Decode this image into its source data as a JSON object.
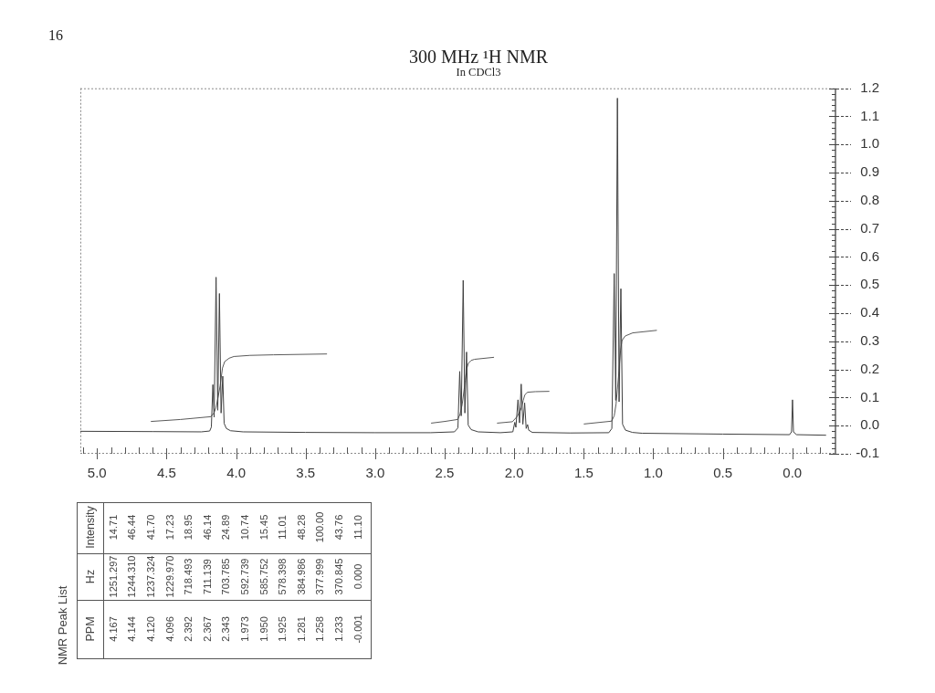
{
  "chart_data": {
    "type": "line",
    "title": "300 MHz ¹H NMR",
    "subtitle": "In CDCl3",
    "series": [
      {
        "color": "#404040",
        "x": [
          5.12,
          4.6,
          4.25,
          4.19,
          4.178,
          4.167,
          4.158,
          4.144,
          4.132,
          4.12,
          4.108,
          4.096,
          4.086,
          4.07,
          4.04,
          3.95,
          3.5,
          3.0,
          2.6,
          2.43,
          2.405,
          2.392,
          2.381,
          2.367,
          2.355,
          2.343,
          2.331,
          2.31,
          2.26,
          2.1,
          2.01,
          1.996,
          1.988,
          1.973,
          1.962,
          1.95,
          1.938,
          1.925,
          1.914,
          1.904,
          1.896,
          1.87,
          1.6,
          1.32,
          1.298,
          1.281,
          1.27,
          1.258,
          1.246,
          1.233,
          1.221,
          1.2,
          1.15,
          1.08,
          0.5,
          0.02,
          0.006,
          -0.001,
          -0.008,
          -0.03,
          -0.24
        ],
        "values": [
          -0.02,
          -0.021,
          -0.022,
          -0.019,
          -0.005,
          0.146,
          0.03,
          0.528,
          0.055,
          0.47,
          0.045,
          0.176,
          0.008,
          -0.01,
          -0.018,
          -0.022,
          -0.024,
          -0.025,
          -0.025,
          -0.022,
          -0.008,
          0.193,
          0.035,
          0.517,
          0.045,
          0.262,
          0.002,
          -0.014,
          -0.022,
          -0.025,
          -0.022,
          0.012,
          -0.006,
          0.092,
          0.01,
          0.148,
          0.005,
          0.081,
          -0.01,
          0.004,
          -0.016,
          -0.024,
          -0.026,
          -0.025,
          -0.01,
          0.541,
          0.09,
          1.165,
          0.085,
          0.487,
          0.005,
          -0.016,
          -0.024,
          -0.027,
          -0.03,
          -0.032,
          -0.022,
          0.092,
          -0.022,
          -0.032,
          -0.034
        ]
      },
      {
        "color": "#5a5a5a",
        "x": [
          4.612,
          4.4,
          4.181,
          4.16,
          4.144,
          4.13,
          4.115,
          4.098,
          4.082,
          4.05,
          4.016,
          3.9,
          3.732,
          3.349
        ],
        "values": [
          0.015,
          0.022,
          0.032,
          0.045,
          0.065,
          0.1,
          0.141,
          0.205,
          0.228,
          0.24,
          0.246,
          0.25,
          0.252,
          0.255
        ]
      },
      {
        "color": "#5a5a5a",
        "x": [
          2.597,
          2.5,
          2.407,
          2.39,
          2.374,
          2.36,
          2.352,
          2.34,
          2.33,
          2.31,
          2.286,
          2.148
        ],
        "values": [
          0.009,
          0.015,
          0.022,
          0.04,
          0.076,
          0.13,
          0.162,
          0.205,
          0.222,
          0.232,
          0.236,
          0.243
        ]
      },
      {
        "color": "#5a5a5a",
        "x": [
          2.122,
          2.013,
          1.98,
          1.96,
          1.947,
          1.935,
          1.925,
          1.912,
          1.903,
          1.848,
          1.75
        ],
        "values": [
          0.009,
          0.014,
          0.032,
          0.05,
          0.065,
          0.09,
          0.108,
          0.116,
          0.119,
          0.121,
          0.122
        ]
      },
      {
        "color": "#5a5a5a",
        "x": [
          1.498,
          1.3,
          1.281,
          1.268,
          1.258,
          1.247,
          1.235,
          1.225,
          1.202,
          1.148,
          0.977
        ],
        "values": [
          0.006,
          0.016,
          0.035,
          0.076,
          0.13,
          0.195,
          0.27,
          0.303,
          0.319,
          0.33,
          0.339
        ]
      }
    ],
    "xlim": [
      5.12,
      -0.31
    ],
    "ylim": [
      -0.1,
      1.2
    ],
    "xticks": [
      {
        "value": 5.1,
        "label": null
      },
      {
        "value": 5,
        "label": "5.0"
      },
      {
        "value": 4.9,
        "label": null
      },
      {
        "value": 4.8,
        "label": null
      },
      {
        "value": 4.7,
        "label": null
      },
      {
        "value": 4.6,
        "label": null
      },
      4.5,
      {
        "value": 4.4,
        "label": null
      },
      {
        "value": 4.3,
        "label": null
      },
      {
        "value": 4.2,
        "label": null
      },
      {
        "value": 4.1,
        "label": null
      },
      {
        "value": 4,
        "label": "4.0"
      },
      {
        "value": 3.9,
        "label": null
      },
      {
        "value": 3.8,
        "label": null
      },
      {
        "value": 3.7,
        "label": null
      },
      {
        "value": 3.6,
        "label": null
      },
      3.5,
      {
        "value": 3.4,
        "label": null
      },
      {
        "value": 3.3,
        "label": null
      },
      {
        "value": 3.2,
        "label": null
      },
      {
        "value": 3.1,
        "label": null
      },
      {
        "value": 3,
        "label": "3.0"
      },
      {
        "value": 2.9,
        "label": null
      },
      {
        "value": 2.8,
        "label": null
      },
      {
        "value": 2.7,
        "label": null
      },
      {
        "value": 2.6,
        "label": null
      },
      2.5,
      {
        "value": 2.4,
        "label": null
      },
      {
        "value": 2.3,
        "label": null
      },
      {
        "value": 2.2,
        "label": null
      },
      {
        "value": 2.1,
        "label": null
      },
      {
        "value": 2,
        "label": "2.0"
      },
      {
        "value": 1.9,
        "label": null
      },
      {
        "value": 1.8,
        "label": null
      },
      {
        "value": 1.7,
        "label": null
      },
      {
        "value": 1.6,
        "label": null
      },
      1.5,
      {
        "value": 1.4,
        "label": null
      },
      {
        "value": 1.3,
        "label": null
      },
      {
        "value": 1.2,
        "label": null
      },
      {
        "value": 1.1,
        "label": null
      },
      {
        "value": 1,
        "label": "1.0"
      },
      {
        "value": 0.9,
        "label": null
      },
      {
        "value": 0.8,
        "label": null
      },
      {
        "value": 0.7,
        "label": null
      },
      {
        "value": 0.6,
        "label": null
      },
      0.5,
      {
        "value": 0.4,
        "label": null
      },
      {
        "value": 0.3,
        "label": null
      },
      {
        "value": 0.2,
        "label": null
      },
      {
        "value": 0.1,
        "label": null
      },
      {
        "value": 0,
        "label": "0.0"
      },
      {
        "value": -0.1,
        "label": null
      },
      {
        "value": -0.2,
        "label": null
      }
    ],
    "yticks": [
      -0.1,
      {
        "value": -0.08,
        "label": null
      },
      {
        "value": -0.06,
        "label": null
      },
      {
        "value": -0.04,
        "label": null
      },
      {
        "value": -0.02,
        "label": null
      },
      {
        "value": 0,
        "label": "0.0"
      },
      {
        "value": 0.02,
        "label": null
      },
      {
        "value": 0.04,
        "label": null
      },
      {
        "value": 0.06,
        "label": null
      },
      {
        "value": 0.08,
        "label": null
      },
      0.1,
      {
        "value": 0.12,
        "label": null
      },
      {
        "value": 0.14,
        "label": null
      },
      {
        "value": 0.16,
        "label": null
      },
      {
        "value": 0.18,
        "label": null
      },
      0.2,
      {
        "value": 0.22,
        "label": null
      },
      {
        "value": 0.24,
        "label": null
      },
      {
        "value": 0.26,
        "label": null
      },
      {
        "value": 0.28,
        "label": null
      },
      0.3,
      {
        "value": 0.32,
        "label": null
      },
      {
        "value": 0.34,
        "label": null
      },
      {
        "value": 0.36,
        "label": null
      },
      {
        "value": 0.38,
        "label": null
      },
      0.4,
      {
        "value": 0.42,
        "label": null
      },
      {
        "value": 0.44,
        "label": null
      },
      {
        "value": 0.46,
        "label": null
      },
      {
        "value": 0.48,
        "label": null
      },
      0.5,
      {
        "value": 0.52,
        "label": null
      },
      {
        "value": 0.54,
        "label": null
      },
      {
        "value": 0.56,
        "label": null
      },
      {
        "value": 0.58,
        "label": null
      },
      0.6,
      {
        "value": 0.62,
        "label": null
      },
      {
        "value": 0.64,
        "label": null
      },
      {
        "value": 0.66,
        "label": null
      },
      {
        "value": 0.68,
        "label": null
      },
      0.7,
      {
        "value": 0.72,
        "label": null
      },
      {
        "value": 0.74,
        "label": null
      },
      {
        "value": 0.76,
        "label": null
      },
      {
        "value": 0.78,
        "label": null
      },
      0.8,
      {
        "value": 0.82,
        "label": null
      },
      {
        "value": 0.84,
        "label": null
      },
      {
        "value": 0.86,
        "label": null
      },
      {
        "value": 0.88,
        "label": null
      },
      0.9,
      {
        "value": 0.92,
        "label": null
      },
      {
        "value": 0.94,
        "label": null
      },
      {
        "value": 0.96,
        "label": null
      },
      {
        "value": 0.98,
        "label": null
      },
      {
        "value": 1,
        "label": "1.0"
      },
      {
        "value": 1.02,
        "label": null
      },
      {
        "value": 1.04,
        "label": null
      },
      {
        "value": 1.06,
        "label": null
      },
      {
        "value": 1.08,
        "label": null
      },
      1.1,
      {
        "value": 1.12,
        "label": null
      },
      {
        "value": 1.14,
        "label": null
      },
      {
        "value": 1.16,
        "label": null
      },
      {
        "value": 1.18,
        "label": null
      },
      1.2
    ],
    "marker": "none",
    "annotations": [
      "16",
      "NMR Peak List",
      "PPM",
      "Hz",
      "Intensity",
      "4.167",
      "1251.297",
      "14.71",
      "4.144",
      "1244.310",
      "46.44",
      "4.120",
      "1237.324",
      "41.70",
      "4.096",
      "1229.970",
      "17.23",
      "2.392",
      "718.493",
      "18.95",
      "2.367",
      "711.139",
      "46.14",
      "2.343",
      "703.785",
      "24.89",
      "1.973",
      "592.739",
      "10.74",
      "1.950",
      "585.752",
      "15.45",
      "1.925",
      "578.398",
      "11.01",
      "1.281",
      "384.986",
      "48.28",
      "1.258",
      "377.999",
      "100.00",
      "1.233",
      "370.845",
      "43.76",
      "-0.001",
      "0.000",
      "11.10"
    ]
  }
}
